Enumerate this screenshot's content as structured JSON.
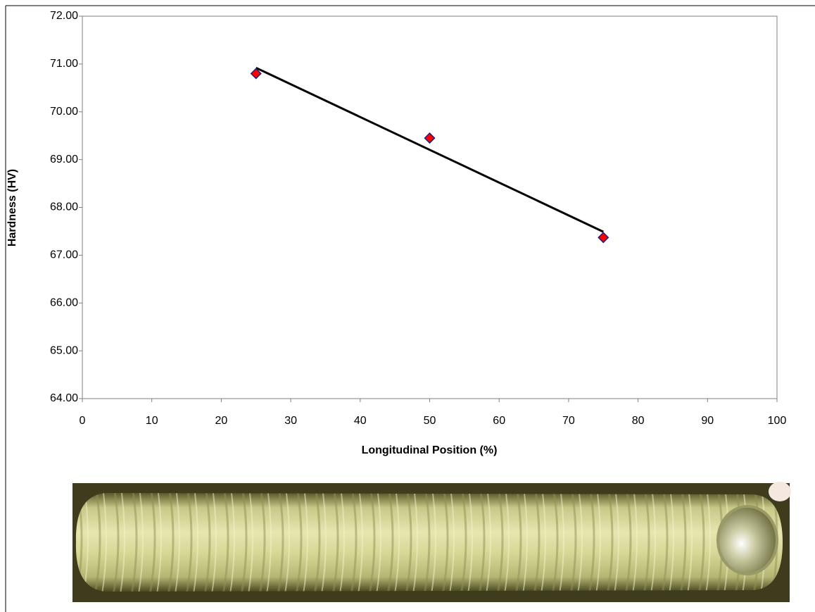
{
  "chart_data": {
    "type": "scatter",
    "x_label": "Longitudinal Position  (%)",
    "y_label": "Hardness (HV)",
    "series": [
      {
        "color": "#ff0000",
        "x": [
          25,
          50,
          75
        ],
        "values": [
          70.8,
          69.45,
          67.37
        ]
      }
    ],
    "trendline": {
      "color": "#000000",
      "x": [
        25,
        75
      ],
      "values": [
        70.92,
        67.49
      ]
    },
    "xlim": [
      0,
      100
    ],
    "xticks": [
      0,
      10,
      20,
      30,
      40,
      50,
      60,
      70,
      80,
      90,
      100
    ],
    "ylim": [
      64,
      72
    ],
    "yticks": [
      {
        "value": 64,
        "label": "64.00"
      },
      {
        "value": 65,
        "label": "65.00"
      },
      {
        "value": 66,
        "label": "66.00"
      },
      {
        "value": 67,
        "label": "67.00"
      },
      {
        "value": 68,
        "label": "68.00"
      },
      {
        "value": 69,
        "label": "69.00"
      },
      {
        "value": 70,
        "label": "70.00"
      },
      {
        "value": 71,
        "label": "71.00"
      },
      {
        "value": 72,
        "label": "72.00"
      }
    ]
  }
}
